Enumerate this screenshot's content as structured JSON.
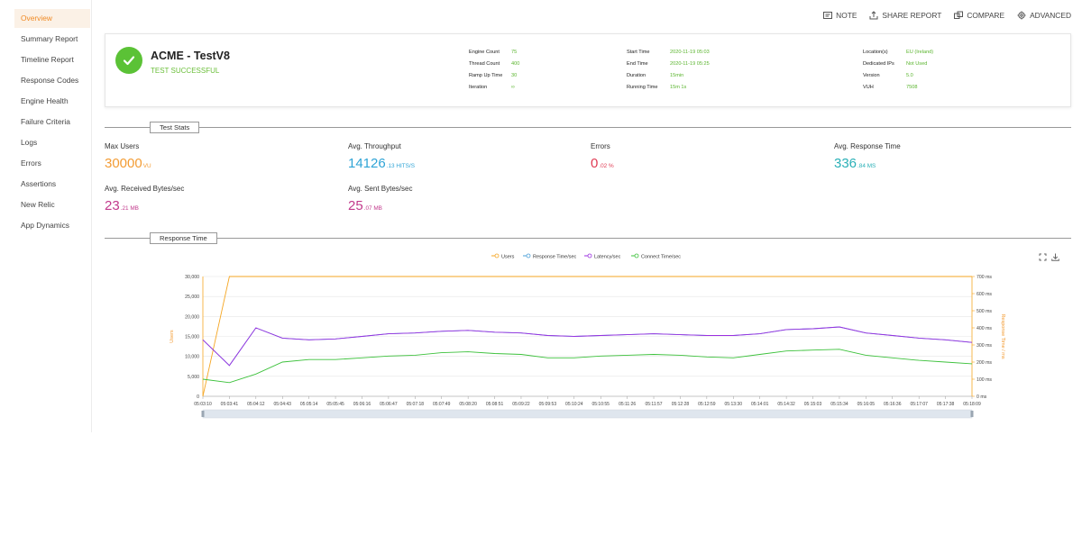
{
  "sidebar": {
    "items": [
      {
        "label": "Overview",
        "active": true
      },
      {
        "label": "Summary Report"
      },
      {
        "label": "Timeline Report"
      },
      {
        "label": "Response Codes"
      },
      {
        "label": "Engine Health"
      },
      {
        "label": "Failure Criteria"
      },
      {
        "label": "Logs"
      },
      {
        "label": "Errors"
      },
      {
        "label": "Assertions"
      },
      {
        "label": "New Relic"
      },
      {
        "label": "App Dynamics"
      }
    ]
  },
  "actions": {
    "note": "NOTE",
    "share": "SHARE REPORT",
    "compare": "COMPARE",
    "advanced": "ADVANCED"
  },
  "summary": {
    "name": "ACME - TestV8",
    "status": "TEST SUCCESSFUL",
    "engine": {
      "engine_count_label": "Engine Count",
      "engine_count": "75",
      "thread_count_label": "Thread Count",
      "thread_count": "400",
      "ramp_up_label": "Ramp Up Time",
      "ramp_up": "30",
      "iteration_label": "Iteration",
      "iteration": "∞"
    },
    "time": {
      "start_label": "Start Time",
      "start": "2020-11-19 05:03",
      "end_label": "End Time",
      "end": "2020-11-19 05:25",
      "duration_label": "Duration",
      "duration": "15min",
      "running_label": "Running Time",
      "running": "15m 1s"
    },
    "env": {
      "location_label": "Location(s)",
      "location": "EU (Ireland)",
      "ips_label": "Dedicated IPs",
      "ips": "Not Used",
      "version_label": "Version",
      "version": "5.0",
      "vuh_label": "VUH",
      "vuh": "7508"
    }
  },
  "sections": {
    "test_stats": "Test Stats",
    "response_time": "Response Time"
  },
  "stats": {
    "max_users": {
      "label": "Max Users",
      "value": "30000",
      "unit": "VU"
    },
    "throughput": {
      "label": "Avg. Throughput",
      "value": "14126",
      "unit": ".13 HITS/S"
    },
    "errors": {
      "label": "Errors",
      "value": "0",
      "unit": ".02 %"
    },
    "response_time": {
      "label": "Avg. Response Time",
      "value": "336",
      "unit": ".84 MS"
    },
    "received": {
      "label": "Avg. Received Bytes/sec",
      "value": "23",
      "unit": ".21 MB"
    },
    "sent": {
      "label": "Avg. Sent Bytes/sec",
      "value": "25",
      "unit": ".07 MB"
    }
  },
  "colors": {
    "users": "#f5a623",
    "response": "#4a9fd8",
    "latency": "#9b2fe0",
    "connect": "#3cc13b"
  },
  "chart_data": {
    "type": "line",
    "legend": [
      "Users",
      "Response Time/sec",
      "Latency/sec",
      "Connect Time/sec"
    ],
    "legend_position": "top",
    "ylabel_left": "Users",
    "ylabel_right": "Response Time / ms",
    "ylim_left": [
      0,
      30000
    ],
    "ylim_right": [
      0,
      700
    ],
    "yticks_left": [
      "0",
      "5,000",
      "10,000",
      "15,000",
      "20,000",
      "25,000",
      "30,000"
    ],
    "yticks_right": [
      "0 ms",
      "100 ms",
      "200 ms",
      "300 ms",
      "400 ms",
      "500 ms",
      "600 ms",
      "700 ms"
    ],
    "x_labels": [
      "05:03:10",
      "05:03:41",
      "05:04:12",
      "05:04:43",
      "05:05:14",
      "05:05:45",
      "05:06:16",
      "05:06:47",
      "05:07:18",
      "05:07:49",
      "05:08:20",
      "05:08:51",
      "05:09:22",
      "05:09:53",
      "05:10:24",
      "05:10:55",
      "05:11:26",
      "05:11:57",
      "05:12:28",
      "05:12:59",
      "05:13:30",
      "05:14:01",
      "05:14:32",
      "05:15:03",
      "05:15:34",
      "05:16:05",
      "05:16:36",
      "05:17:07",
      "05:17:38",
      "05:18:09"
    ],
    "grid": true,
    "series": [
      {
        "name": "Users",
        "axis": "left",
        "values": [
          0,
          30000,
          30000,
          30000,
          30000,
          30000,
          30000,
          30000,
          30000,
          30000,
          30000,
          30000,
          30000,
          30000,
          30000,
          30000,
          30000,
          30000,
          30000,
          30000,
          30000,
          30000,
          30000,
          30000,
          30000,
          30000,
          30000,
          30000,
          30000,
          30000
        ]
      },
      {
        "name": "Response Time/sec",
        "axis": "right",
        "values": [
          330,
          180,
          400,
          340,
          330,
          335,
          350,
          365,
          370,
          380,
          385,
          375,
          370,
          355,
          350,
          355,
          360,
          365,
          360,
          355,
          355,
          365,
          390,
          395,
          405,
          370,
          355,
          340,
          330,
          315
        ]
      },
      {
        "name": "Latency/sec",
        "axis": "right",
        "values": [
          330,
          180,
          400,
          340,
          330,
          335,
          350,
          365,
          370,
          380,
          385,
          375,
          370,
          355,
          350,
          355,
          360,
          365,
          360,
          355,
          355,
          365,
          390,
          395,
          405,
          370,
          355,
          340,
          330,
          315
        ]
      },
      {
        "name": "Connect Time/sec",
        "axis": "right",
        "values": [
          100,
          80,
          130,
          200,
          215,
          215,
          225,
          235,
          240,
          255,
          260,
          250,
          245,
          225,
          225,
          235,
          240,
          245,
          240,
          230,
          225,
          245,
          265,
          270,
          275,
          240,
          225,
          210,
          200,
          190
        ]
      }
    ]
  }
}
